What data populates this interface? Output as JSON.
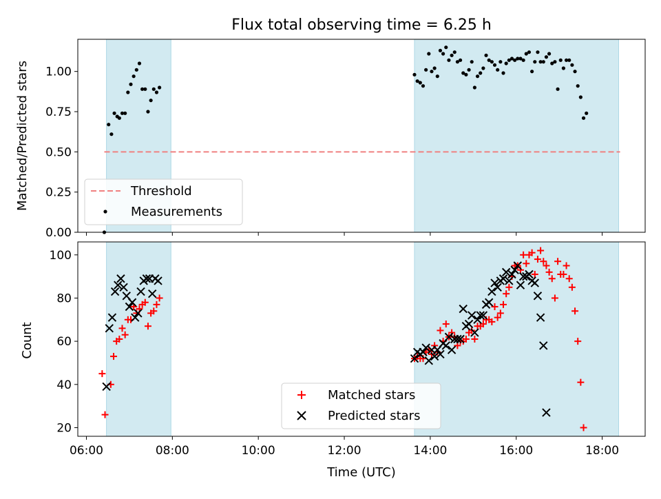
{
  "chart_data": [
    {
      "type": "scatter",
      "title": "Flux total observing time = 6.25 h",
      "ylabel": "Matched/Predicted stars",
      "ylim": [
        0,
        1.2
      ],
      "yticks": [
        "0.00",
        "0.25",
        "0.50",
        "0.75",
        "1.00"
      ],
      "threshold": {
        "name": "Threshold",
        "value": 0.5,
        "color": "#f08080",
        "style": "dashed",
        "xrange": [
          "06:25",
          "18:25"
        ]
      },
      "shaded_intervals": [
        [
          "06:28",
          "07:58"
        ],
        [
          "13:38",
          "18:23"
        ]
      ],
      "shade_color": "#add8e6",
      "legend_position": "lower left",
      "series": [
        {
          "name": "Measurements",
          "color": "#000000",
          "marker": "dot",
          "points": [
            [
              "06:25",
              0.0
            ],
            [
              "06:31",
              0.67
            ],
            [
              "06:35",
              0.61
            ],
            [
              "06:39",
              0.74
            ],
            [
              "06:43",
              0.72
            ],
            [
              "06:46",
              0.71
            ],
            [
              "06:50",
              0.74
            ],
            [
              "06:54",
              0.74
            ],
            [
              "06:58",
              0.87
            ],
            [
              "07:02",
              0.92
            ],
            [
              "07:06",
              0.97
            ],
            [
              "07:10",
              1.01
            ],
            [
              "07:14",
              1.05
            ],
            [
              "07:18",
              0.89
            ],
            [
              "07:22",
              0.89
            ],
            [
              "07:26",
              0.75
            ],
            [
              "07:30",
              0.82
            ],
            [
              "07:34",
              0.89
            ],
            [
              "07:38",
              0.87
            ],
            [
              "07:42",
              0.9
            ],
            [
              "13:38",
              0.98
            ],
            [
              "13:42",
              0.94
            ],
            [
              "13:46",
              0.93
            ],
            [
              "13:50",
              0.91
            ],
            [
              "13:54",
              1.01
            ],
            [
              "13:58",
              1.11
            ],
            [
              "14:02",
              1.0
            ],
            [
              "14:06",
              1.02
            ],
            [
              "14:10",
              0.97
            ],
            [
              "14:14",
              1.13
            ],
            [
              "14:18",
              1.11
            ],
            [
              "14:22",
              1.15
            ],
            [
              "14:26",
              1.07
            ],
            [
              "14:30",
              1.1
            ],
            [
              "14:34",
              1.12
            ],
            [
              "14:38",
              1.06
            ],
            [
              "14:42",
              1.07
            ],
            [
              "14:46",
              0.99
            ],
            [
              "14:50",
              0.98
            ],
            [
              "14:54",
              1.01
            ],
            [
              "14:58",
              1.06
            ],
            [
              "15:02",
              0.9
            ],
            [
              "15:06",
              0.97
            ],
            [
              "15:10",
              0.99
            ],
            [
              "15:14",
              1.02
            ],
            [
              "15:18",
              1.1
            ],
            [
              "15:22",
              1.07
            ],
            [
              "15:26",
              1.06
            ],
            [
              "15:30",
              1.04
            ],
            [
              "15:34",
              1.01
            ],
            [
              "15:38",
              1.06
            ],
            [
              "15:42",
              0.99
            ],
            [
              "15:46",
              1.05
            ],
            [
              "15:50",
              1.07
            ],
            [
              "15:54",
              1.08
            ],
            [
              "15:58",
              1.07
            ],
            [
              "16:02",
              1.08
            ],
            [
              "16:06",
              1.08
            ],
            [
              "16:10",
              1.07
            ],
            [
              "16:14",
              1.11
            ],
            [
              "16:18",
              1.12
            ],
            [
              "16:22",
              1.0
            ],
            [
              "16:26",
              1.06
            ],
            [
              "16:30",
              1.12
            ],
            [
              "16:34",
              1.06
            ],
            [
              "16:38",
              1.06
            ],
            [
              "16:42",
              1.09
            ],
            [
              "16:46",
              1.11
            ],
            [
              "16:50",
              1.05
            ],
            [
              "16:54",
              1.06
            ],
            [
              "16:58",
              0.89
            ],
            [
              "17:02",
              1.07
            ],
            [
              "17:06",
              1.02
            ],
            [
              "17:10",
              1.07
            ],
            [
              "17:14",
              1.07
            ],
            [
              "17:18",
              1.04
            ],
            [
              "17:22",
              1.0
            ],
            [
              "17:26",
              0.91
            ],
            [
              "17:30",
              0.84
            ],
            [
              "17:34",
              0.71
            ],
            [
              "17:38",
              0.74
            ]
          ]
        }
      ]
    },
    {
      "type": "scatter",
      "xlabel": "Time (UTC)",
      "ylabel": "Count",
      "xlim": [
        "06:00",
        "19:00"
      ],
      "ylim": [
        16,
        106
      ],
      "xticks": [
        "06:00",
        "08:00",
        "10:00",
        "12:00",
        "14:00",
        "16:00",
        "18:00"
      ],
      "yticks": [
        "20",
        "40",
        "60",
        "80",
        "100"
      ],
      "shaded_intervals": [
        [
          "06:28",
          "07:58"
        ],
        [
          "13:38",
          "18:23"
        ]
      ],
      "shade_color": "#add8e6",
      "legend_position": "lower center",
      "series": [
        {
          "name": "Matched stars",
          "color": "#ff0000",
          "marker": "plus",
          "points": [
            [
              "06:22",
              45
            ],
            [
              "06:26",
              26
            ],
            [
              "06:34",
              40
            ],
            [
              "06:38",
              53
            ],
            [
              "06:42",
              60
            ],
            [
              "06:46",
              61
            ],
            [
              "06:50",
              66
            ],
            [
              "06:54",
              63
            ],
            [
              "06:58",
              70
            ],
            [
              "07:02",
              70
            ],
            [
              "07:06",
              76
            ],
            [
              "07:10",
              73
            ],
            [
              "07:14",
              75
            ],
            [
              "07:18",
              77
            ],
            [
              "07:22",
              78
            ],
            [
              "07:26",
              67
            ],
            [
              "07:30",
              73
            ],
            [
              "07:34",
              74
            ],
            [
              "07:38",
              77
            ],
            [
              "07:42",
              80
            ],
            [
              "13:38",
              52
            ],
            [
              "13:42",
              53
            ],
            [
              "13:46",
              52
            ],
            [
              "13:50",
              52
            ],
            [
              "13:54",
              55
            ],
            [
              "13:58",
              56
            ],
            [
              "14:02",
              54
            ],
            [
              "14:06",
              58
            ],
            [
              "14:10",
              55
            ],
            [
              "14:14",
              65
            ],
            [
              "14:18",
              60
            ],
            [
              "14:22",
              68
            ],
            [
              "14:26",
              62
            ],
            [
              "14:30",
              64
            ],
            [
              "14:34",
              62
            ],
            [
              "14:38",
              58
            ],
            [
              "14:42",
              60
            ],
            [
              "14:46",
              60
            ],
            [
              "14:50",
              61
            ],
            [
              "14:54",
              64
            ],
            [
              "14:58",
              65
            ],
            [
              "15:02",
              61
            ],
            [
              "15:06",
              67
            ],
            [
              "15:10",
              67
            ],
            [
              "15:14",
              68
            ],
            [
              "15:18",
              70
            ],
            [
              "15:22",
              70
            ],
            [
              "15:26",
              69
            ],
            [
              "15:30",
              76
            ],
            [
              "15:34",
              71
            ],
            [
              "15:38",
              73
            ],
            [
              "15:42",
              77
            ],
            [
              "15:46",
              82
            ],
            [
              "15:50",
              85
            ],
            [
              "15:54",
              90
            ],
            [
              "15:58",
              95
            ],
            [
              "16:02",
              95
            ],
            [
              "16:06",
              93
            ],
            [
              "16:10",
              100
            ],
            [
              "16:14",
              96
            ],
            [
              "16:18",
              100
            ],
            [
              "16:22",
              101
            ],
            [
              "16:26",
              91
            ],
            [
              "16:30",
              98
            ],
            [
              "16:34",
              102
            ],
            [
              "16:38",
              97
            ],
            [
              "16:42",
              95
            ],
            [
              "16:46",
              92
            ],
            [
              "16:50",
              89
            ],
            [
              "16:54",
              80
            ],
            [
              "16:58",
              97
            ],
            [
              "17:02",
              91
            ],
            [
              "17:06",
              91
            ],
            [
              "17:10",
              95
            ],
            [
              "17:14",
              89
            ],
            [
              "17:18",
              85
            ],
            [
              "17:22",
              74
            ],
            [
              "17:26",
              60
            ],
            [
              "17:30",
              41
            ],
            [
              "17:34",
              20
            ]
          ]
        },
        {
          "name": "Predicted stars",
          "color": "#000000",
          "marker": "x",
          "points": [
            [
              "06:28",
              39
            ],
            [
              "06:32",
              66
            ],
            [
              "06:36",
              71
            ],
            [
              "06:40",
              83
            ],
            [
              "06:44",
              86
            ],
            [
              "06:48",
              89
            ],
            [
              "06:52",
              85
            ],
            [
              "06:56",
              81
            ],
            [
              "07:00",
              76
            ],
            [
              "07:04",
              78
            ],
            [
              "07:08",
              71
            ],
            [
              "07:12",
              73
            ],
            [
              "07:16",
              83
            ],
            [
              "07:20",
              88
            ],
            [
              "07:24",
              89
            ],
            [
              "07:28",
              89
            ],
            [
              "07:32",
              82
            ],
            [
              "07:36",
              89
            ],
            [
              "07:40",
              88
            ],
            [
              "13:38",
              52
            ],
            [
              "13:42",
              55
            ],
            [
              "13:46",
              54
            ],
            [
              "13:50",
              55
            ],
            [
              "13:54",
              57
            ],
            [
              "13:58",
              51
            ],
            [
              "14:02",
              56
            ],
            [
              "14:06",
              53
            ],
            [
              "14:10",
              56
            ],
            [
              "14:14",
              54
            ],
            [
              "14:18",
              59
            ],
            [
              "14:22",
              58
            ],
            [
              "14:26",
              62
            ],
            [
              "14:30",
              56
            ],
            [
              "14:34",
              61
            ],
            [
              "14:38",
              61
            ],
            [
              "14:42",
              61
            ],
            [
              "14:46",
              75
            ],
            [
              "14:50",
              67
            ],
            [
              "14:54",
              68
            ],
            [
              "14:58",
              72
            ],
            [
              "15:02",
              64
            ],
            [
              "15:06",
              70
            ],
            [
              "15:10",
              72
            ],
            [
              "15:14",
              72
            ],
            [
              "15:18",
              77
            ],
            [
              "15:22",
              78
            ],
            [
              "15:26",
              83
            ],
            [
              "15:30",
              87
            ],
            [
              "15:34",
              85
            ],
            [
              "15:38",
              88
            ],
            [
              "15:42",
              89
            ],
            [
              "15:46",
              92
            ],
            [
              "15:50",
              88
            ],
            [
              "15:54",
              91
            ],
            [
              "15:58",
              93
            ],
            [
              "16:02",
              95
            ],
            [
              "16:06",
              86
            ],
            [
              "16:10",
              90
            ],
            [
              "16:14",
              90
            ],
            [
              "16:18",
              91
            ],
            [
              "16:22",
              88
            ],
            [
              "16:26",
              87
            ],
            [
              "16:30",
              81
            ],
            [
              "16:34",
              71
            ],
            [
              "16:38",
              58
            ],
            [
              "16:42",
              27
            ]
          ]
        }
      ]
    }
  ]
}
